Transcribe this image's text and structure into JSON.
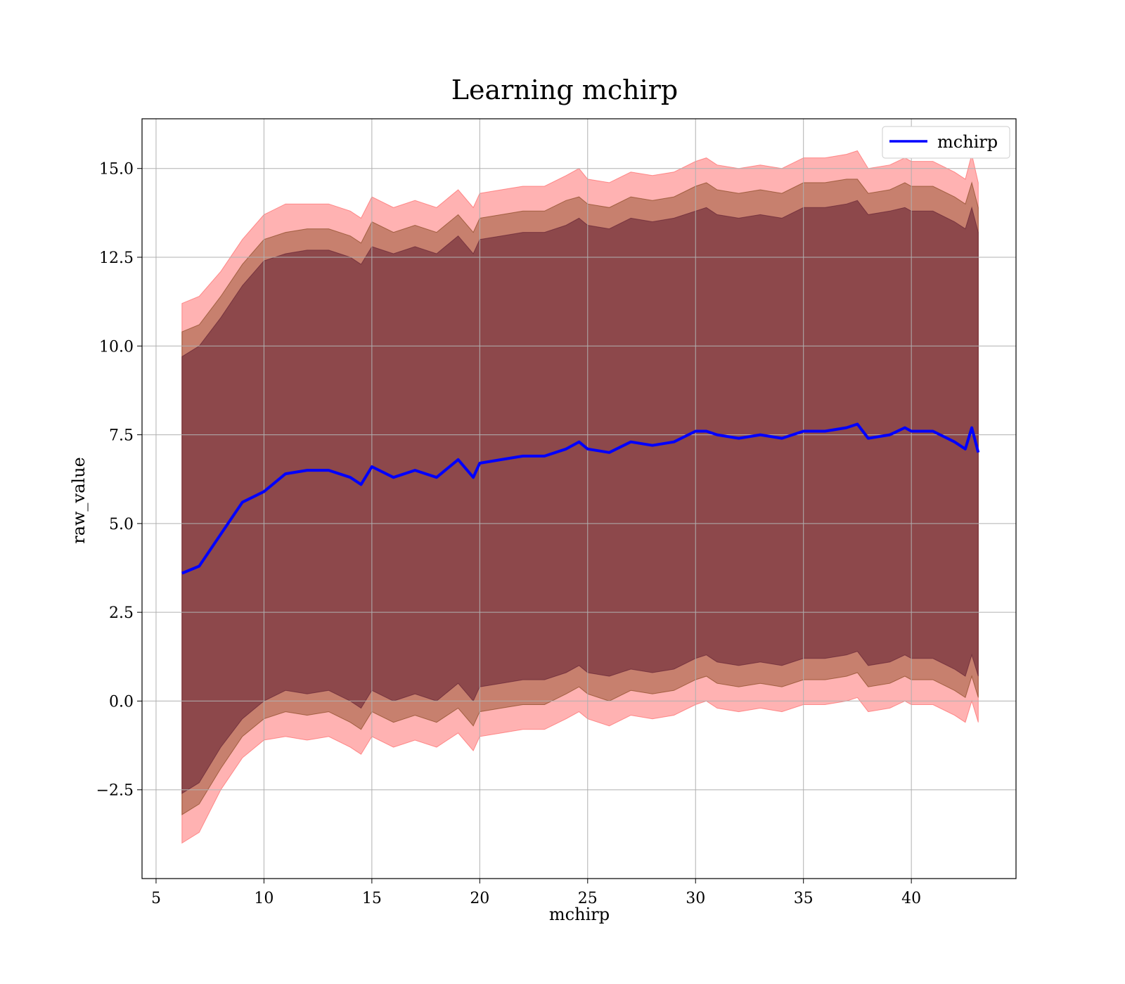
{
  "chart_data": {
    "type": "line",
    "title": "Learning mchirp",
    "xlabel": "mchirp",
    "ylabel": "raw_value",
    "xlim": [
      4.35,
      44.85
    ],
    "ylim": [
      -5.0,
      16.4
    ],
    "xticks": [
      5,
      10,
      15,
      20,
      25,
      30,
      35,
      40
    ],
    "xtick_labels": [
      "5",
      "10",
      "15",
      "20",
      "25",
      "30",
      "35",
      "40"
    ],
    "yticks": [
      -2.5,
      0.0,
      2.5,
      5.0,
      7.5,
      10.0,
      12.5,
      15.0
    ],
    "ytick_labels": [
      "−2.5",
      "0.0",
      "2.5",
      "5.0",
      "7.5",
      "10.0",
      "12.5",
      "15.0"
    ],
    "grid": true,
    "legend_position": "top-right",
    "colors": {
      "line": "#0000ff",
      "band_outer": "#ff5555",
      "band_middle": "#7a3c10",
      "band_inner": "#5c1a30"
    },
    "series": [
      {
        "name": "mchirp",
        "x": [
          6.2,
          7.0,
          8.0,
          9.0,
          10.0,
          11.0,
          12.0,
          13.0,
          14.0,
          14.5,
          15.0,
          16.0,
          17.0,
          18.0,
          19.0,
          19.7,
          20.0,
          21.0,
          22.0,
          23.0,
          24.0,
          24.6,
          25.0,
          26.0,
          27.0,
          28.0,
          29.0,
          30.0,
          30.5,
          31.0,
          32.0,
          33.0,
          34.0,
          35.0,
          36.0,
          37.0,
          37.5,
          38.0,
          39.0,
          39.7,
          40.0,
          41.0,
          42.0,
          42.5,
          42.8,
          43.1
        ],
        "y": [
          3.6,
          3.8,
          4.7,
          5.6,
          5.9,
          6.4,
          6.5,
          6.5,
          6.3,
          6.1,
          6.6,
          6.3,
          6.5,
          6.3,
          6.8,
          6.3,
          6.7,
          6.8,
          6.9,
          6.9,
          7.1,
          7.3,
          7.1,
          7.0,
          7.3,
          7.2,
          7.3,
          7.6,
          7.6,
          7.5,
          7.4,
          7.5,
          7.4,
          7.6,
          7.6,
          7.7,
          7.8,
          7.4,
          7.5,
          7.7,
          7.6,
          7.6,
          7.3,
          7.1,
          7.7,
          7.0
        ],
        "bands": [
          {
            "lower": [
              -4.0,
              -3.7,
              -2.5,
              -1.6,
              -1.1,
              -1.0,
              -1.1,
              -1.0,
              -1.3,
              -1.5,
              -1.0,
              -1.3,
              -1.1,
              -1.3,
              -0.9,
              -1.4,
              -1.0,
              -0.9,
              -0.8,
              -0.8,
              -0.5,
              -0.3,
              -0.5,
              -0.7,
              -0.4,
              -0.5,
              -0.4,
              -0.1,
              0.0,
              -0.2,
              -0.3,
              -0.2,
              -0.3,
              -0.1,
              -0.1,
              0.0,
              0.1,
              -0.3,
              -0.2,
              0.0,
              -0.1,
              -0.1,
              -0.4,
              -0.6,
              0.0,
              -0.6
            ],
            "upper": [
              11.2,
              11.4,
              12.1,
              13.0,
              13.7,
              14.0,
              14.0,
              14.0,
              13.8,
              13.6,
              14.2,
              13.9,
              14.1,
              13.9,
              14.4,
              13.9,
              14.3,
              14.4,
              14.5,
              14.5,
              14.8,
              15.0,
              14.7,
              14.6,
              14.9,
              14.8,
              14.9,
              15.2,
              15.3,
              15.1,
              15.0,
              15.1,
              15.0,
              15.3,
              15.3,
              15.4,
              15.5,
              15.0,
              15.1,
              15.3,
              15.2,
              15.2,
              14.9,
              14.7,
              15.4,
              14.6
            ]
          },
          {
            "lower": [
              -3.2,
              -2.9,
              -1.9,
              -1.0,
              -0.5,
              -0.3,
              -0.4,
              -0.3,
              -0.6,
              -0.8,
              -0.3,
              -0.6,
              -0.4,
              -0.6,
              -0.2,
              -0.7,
              -0.3,
              -0.2,
              -0.1,
              -0.1,
              0.2,
              0.4,
              0.2,
              0.0,
              0.3,
              0.2,
              0.3,
              0.6,
              0.7,
              0.5,
              0.4,
              0.5,
              0.4,
              0.6,
              0.6,
              0.7,
              0.8,
              0.4,
              0.5,
              0.7,
              0.6,
              0.6,
              0.3,
              0.1,
              0.7,
              0.1
            ],
            "upper": [
              10.4,
              10.6,
              11.4,
              12.3,
              13.0,
              13.2,
              13.3,
              13.3,
              13.1,
              12.9,
              13.5,
              13.2,
              13.4,
              13.2,
              13.7,
              13.2,
              13.6,
              13.7,
              13.8,
              13.8,
              14.1,
              14.2,
              14.0,
              13.9,
              14.2,
              14.1,
              14.2,
              14.5,
              14.6,
              14.4,
              14.3,
              14.4,
              14.3,
              14.6,
              14.6,
              14.7,
              14.7,
              14.3,
              14.4,
              14.6,
              14.5,
              14.5,
              14.2,
              14.0,
              14.6,
              13.9
            ]
          },
          {
            "lower": [
              -2.6,
              -2.3,
              -1.3,
              -0.5,
              0.0,
              0.3,
              0.2,
              0.3,
              0.0,
              -0.2,
              0.3,
              0.0,
              0.2,
              0.0,
              0.5,
              0.0,
              0.4,
              0.5,
              0.6,
              0.6,
              0.8,
              1.0,
              0.8,
              0.7,
              0.9,
              0.8,
              0.9,
              1.2,
              1.3,
              1.1,
              1.0,
              1.1,
              1.0,
              1.2,
              1.2,
              1.3,
              1.4,
              1.0,
              1.1,
              1.3,
              1.2,
              1.2,
              0.9,
              0.7,
              1.3,
              0.7
            ],
            "upper": [
              9.7,
              10.0,
              10.8,
              11.7,
              12.4,
              12.6,
              12.7,
              12.7,
              12.5,
              12.3,
              12.8,
              12.6,
              12.8,
              12.6,
              13.1,
              12.6,
              13.0,
              13.1,
              13.2,
              13.2,
              13.4,
              13.6,
              13.4,
              13.3,
              13.6,
              13.5,
              13.6,
              13.8,
              13.9,
              13.7,
              13.6,
              13.7,
              13.6,
              13.9,
              13.9,
              14.0,
              14.1,
              13.7,
              13.8,
              13.9,
              13.8,
              13.8,
              13.5,
              13.3,
              13.9,
              13.2
            ]
          }
        ]
      }
    ]
  }
}
